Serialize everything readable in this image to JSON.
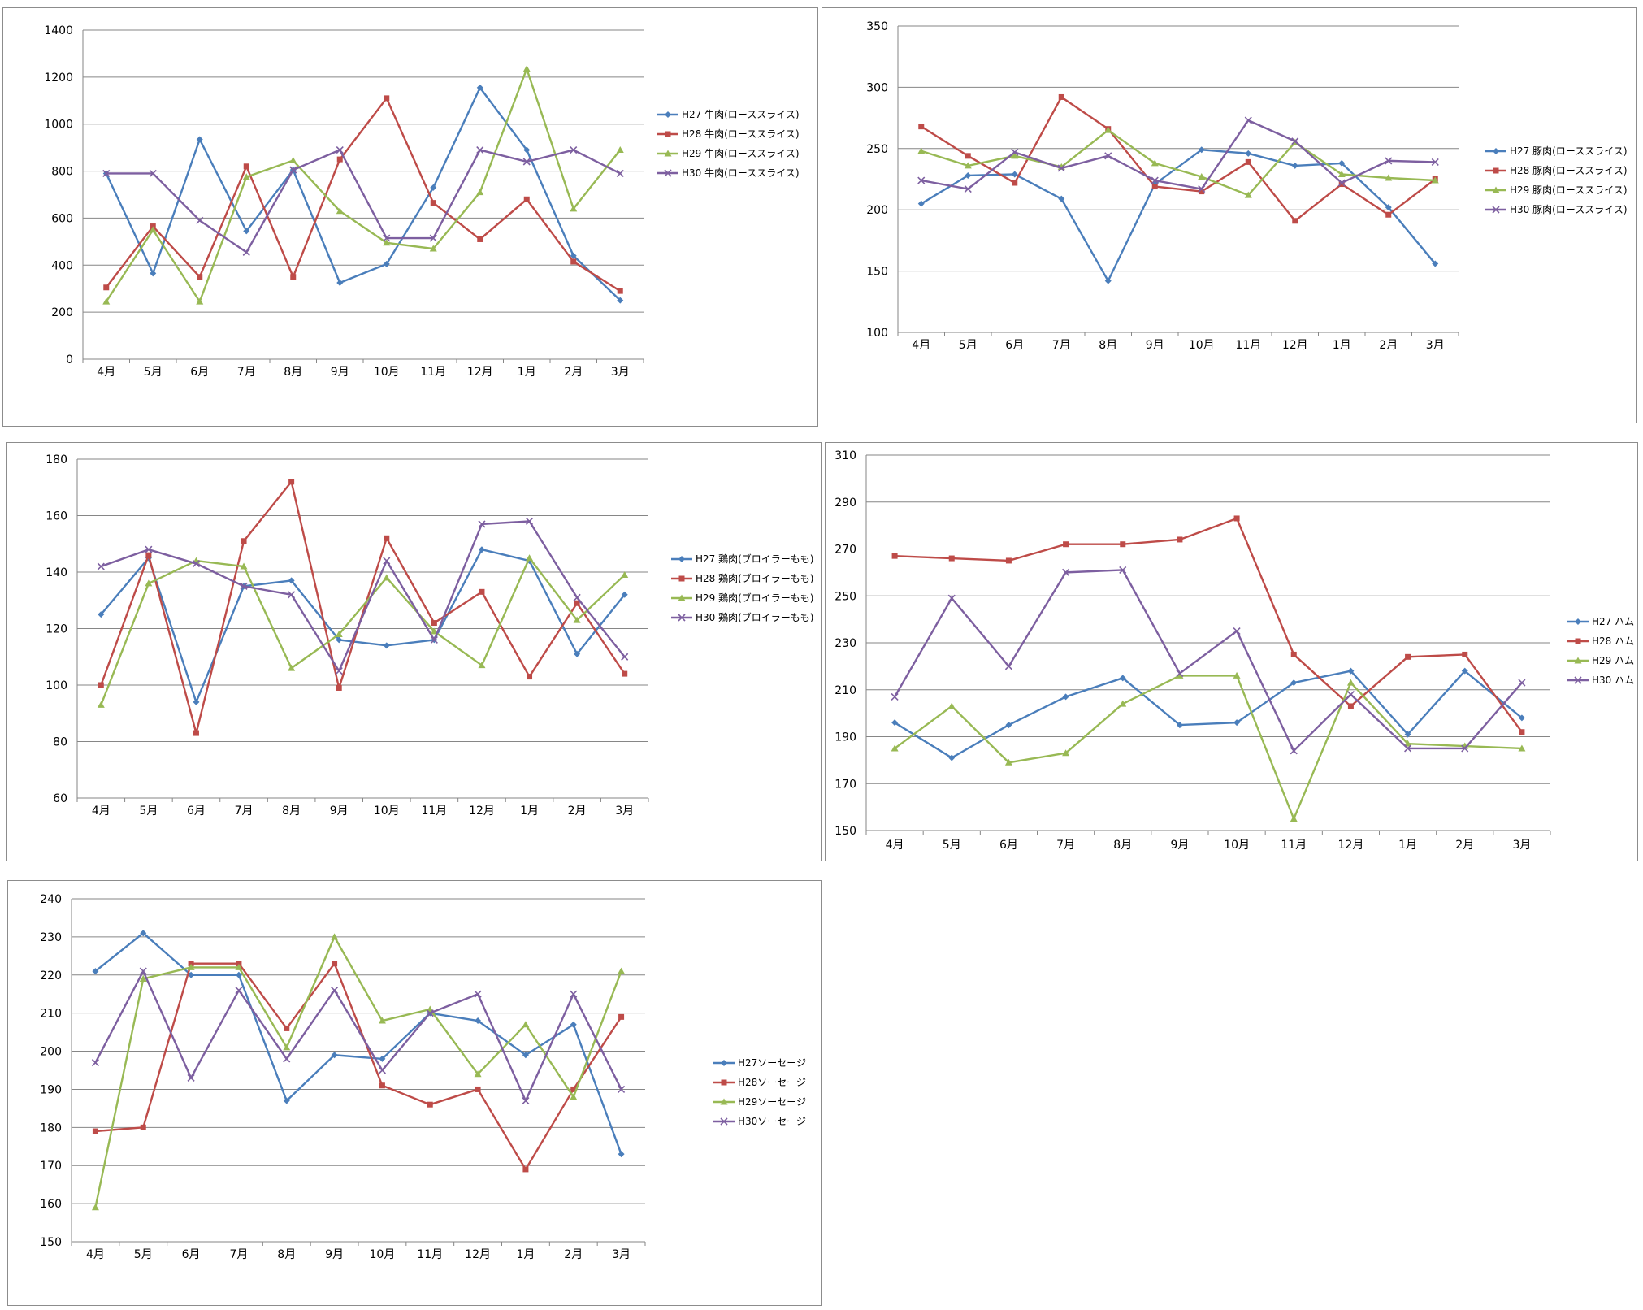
{
  "months": [
    "4月",
    "5月",
    "6月",
    "7月",
    "8月",
    "9月",
    "10月",
    "11月",
    "12月",
    "1月",
    "2月",
    "3月"
  ],
  "colors": {
    "H27": "#4a7ebb",
    "H28": "#be4b48",
    "H29": "#98b954",
    "H30": "#7d5fa0"
  },
  "chart_data": [
    {
      "type": "line",
      "categories": [
        "4月",
        "5月",
        "6月",
        "7月",
        "8月",
        "9月",
        "10月",
        "11月",
        "12月",
        "1月",
        "2月",
        "3月"
      ],
      "ylim": [
        0,
        1400
      ],
      "yticks": [
        "0",
        "200",
        "400",
        "600",
        "800",
        "1000",
        "1200",
        "1400"
      ],
      "grid": true,
      "legend": "right",
      "series": [
        {
          "name": "H27 牛肉(ローススライス)",
          "values": [
            790,
            365,
            935,
            545,
            805,
            325,
            405,
            730,
            1155,
            890,
            440,
            250
          ]
        },
        {
          "name": "H28 牛肉(ローススライス)",
          "values": [
            305,
            565,
            350,
            820,
            350,
            850,
            1110,
            665,
            510,
            680,
            415,
            290
          ]
        },
        {
          "name": "H29 牛肉(ローススライス)",
          "values": [
            245,
            550,
            245,
            775,
            845,
            630,
            495,
            470,
            710,
            1235,
            640,
            890
          ]
        },
        {
          "name": "H30 牛肉(ローススライス)",
          "values": [
            790,
            790,
            590,
            455,
            805,
            890,
            515,
            515,
            890,
            840,
            890,
            790
          ]
        }
      ]
    },
    {
      "type": "line",
      "categories": [
        "4月",
        "5月",
        "6月",
        "7月",
        "8月",
        "9月",
        "10月",
        "11月",
        "12月",
        "1月",
        "2月",
        "3月"
      ],
      "ylim": [
        100,
        350
      ],
      "yticks": [
        "100",
        "150",
        "200",
        "250",
        "300",
        "350"
      ],
      "grid": true,
      "legend": "right",
      "series": [
        {
          "name": "H27 豚肉(ローススライス)",
          "values": [
            205,
            228,
            229,
            209,
            142,
            221,
            249,
            246,
            236,
            238,
            202,
            156
          ]
        },
        {
          "name": "H28 豚肉(ローススライス)",
          "values": [
            268,
            244,
            222,
            292,
            266,
            219,
            215,
            239,
            191,
            221,
            196,
            225
          ]
        },
        {
          "name": "H29 豚肉(ローススライス)",
          "values": [
            248,
            236,
            244,
            235,
            265,
            238,
            227,
            212,
            255,
            229,
            226,
            224
          ]
        },
        {
          "name": "H30 豚肉(ローススライス)",
          "values": [
            224,
            217,
            247,
            234,
            244,
            224,
            217,
            273,
            256,
            222,
            240,
            239
          ]
        }
      ]
    },
    {
      "type": "line",
      "categories": [
        "4月",
        "5月",
        "6月",
        "7月",
        "8月",
        "9月",
        "10月",
        "11月",
        "12月",
        "1月",
        "2月",
        "3月"
      ],
      "ylim": [
        60,
        180
      ],
      "yticks": [
        "60",
        "80",
        "100",
        "120",
        "140",
        "160",
        "180"
      ],
      "grid": true,
      "legend": "right",
      "series": [
        {
          "name": "H27 鶏肉(ブロイラーもも)",
          "values": [
            125,
            145,
            94,
            135,
            137,
            116,
            114,
            116,
            148,
            144,
            111,
            132
          ]
        },
        {
          "name": "H28 鶏肉(ブロイラーもも)",
          "values": [
            100,
            146,
            83,
            151,
            172,
            99,
            152,
            122,
            133,
            103,
            129,
            104
          ]
        },
        {
          "name": "H29 鶏肉(ブロイラーもも)",
          "values": [
            93,
            136,
            144,
            142,
            106,
            118,
            138,
            119,
            107,
            145,
            123,
            139
          ]
        },
        {
          "name": "H30 鶏肉(ブロイラーもも)",
          "values": [
            142,
            148,
            143,
            135,
            132,
            105,
            144,
            116,
            157,
            158,
            131,
            110
          ]
        }
      ]
    },
    {
      "type": "line",
      "categories": [
        "4月",
        "5月",
        "6月",
        "7月",
        "8月",
        "9月",
        "10月",
        "11月",
        "12月",
        "1月",
        "2月",
        "3月"
      ],
      "ylim": [
        150,
        310
      ],
      "yticks": [
        "150",
        "170",
        "190",
        "210",
        "230",
        "250",
        "270",
        "290",
        "310"
      ],
      "grid": true,
      "legend": "right",
      "series": [
        {
          "name": "H27 ハム",
          "values": [
            196,
            181,
            195,
            207,
            215,
            195,
            196,
            213,
            218,
            191,
            218,
            198
          ]
        },
        {
          "name": "H28 ハム",
          "values": [
            267,
            266,
            265,
            272,
            272,
            274,
            283,
            225,
            203,
            224,
            225,
            192
          ]
        },
        {
          "name": "H29 ハム",
          "values": [
            185,
            203,
            179,
            183,
            204,
            216,
            216,
            155,
            213,
            187,
            186,
            185
          ]
        },
        {
          "name": "H30 ハム",
          "values": [
            207,
            249,
            220,
            260,
            261,
            217,
            235,
            184,
            208,
            185,
            185,
            213
          ]
        }
      ]
    },
    {
      "type": "line",
      "categories": [
        "4月",
        "5月",
        "6月",
        "7月",
        "8月",
        "9月",
        "10月",
        "11月",
        "12月",
        "1月",
        "2月",
        "3月"
      ],
      "ylim": [
        150,
        240
      ],
      "yticks": [
        "150",
        "160",
        "170",
        "180",
        "190",
        "200",
        "210",
        "220",
        "230",
        "240"
      ],
      "grid": true,
      "legend": "right",
      "series": [
        {
          "name": "H27ソーセージ",
          "values": [
            221,
            231,
            220,
            220,
            187,
            199,
            198,
            210,
            208,
            199,
            207,
            173
          ]
        },
        {
          "name": "H28ソーセージ",
          "values": [
            179,
            180,
            223,
            223,
            206,
            223,
            191,
            186,
            190,
            169,
            190,
            209
          ]
        },
        {
          "name": "H29ソーセージ",
          "values": [
            159,
            219,
            222,
            222,
            201,
            230,
            208,
            211,
            194,
            207,
            188,
            221
          ]
        },
        {
          "name": "H30ソーセージ",
          "values": [
            197,
            221,
            193,
            216,
            198,
            216,
            195,
            210,
            215,
            187,
            215,
            190
          ]
        }
      ]
    }
  ]
}
